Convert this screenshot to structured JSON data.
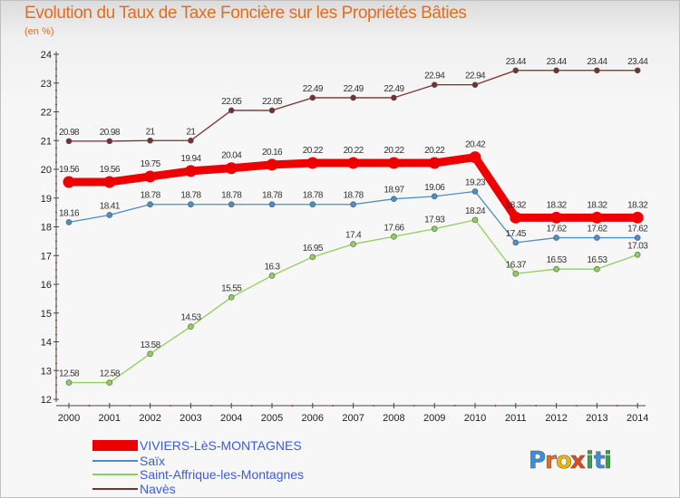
{
  "chart_data": {
    "type": "line",
    "title": "Evolution du Taux de Taxe Foncière sur les Propriétés Bâties",
    "unit_label": "(en %)",
    "x": [
      "2000",
      "2001",
      "2002",
      "2003",
      "2004",
      "2005",
      "2006",
      "2007",
      "2008",
      "2009",
      "2010",
      "2011",
      "2012",
      "2013",
      "2014"
    ],
    "ylim": [
      12,
      24
    ],
    "yticks": [
      "12",
      "13",
      "14",
      "15",
      "16",
      "17",
      "18",
      "19",
      "20",
      "21",
      "22",
      "23",
      "24"
    ],
    "grid": false,
    "legend_position": "bottom-left",
    "series": [
      {
        "name": "VIVIERS-LèS-MONTAGNES",
        "color": "#ee0000",
        "values": [
          19.56,
          19.56,
          19.75,
          19.94,
          20.04,
          20.16,
          20.22,
          20.22,
          20.22,
          20.22,
          20.42,
          18.32,
          18.32,
          18.32,
          18.32
        ],
        "labels": [
          "19.56",
          "19.56",
          "19.75",
          "19.94",
          "20.04",
          "20.16",
          "20.22",
          "20.22",
          "20.22",
          "20.22",
          "20.42",
          "18.32",
          "18.32",
          "18.32",
          "18.32"
        ]
      },
      {
        "name": "Saïx",
        "color": "#4d8ec4",
        "values": [
          18.16,
          18.41,
          18.78,
          18.78,
          18.78,
          18.78,
          18.78,
          18.78,
          18.97,
          19.06,
          19.23,
          17.45,
          17.62,
          17.62,
          17.62
        ],
        "labels": [
          "18.16",
          "18.41",
          "18.78",
          "18.78",
          "18.78",
          "18.78",
          "18.78",
          "18.78",
          "18.97",
          "19.06",
          "19.23",
          "17.45",
          "17.62",
          "17.62",
          "17.62"
        ]
      },
      {
        "name": "Saint-Affrique-les-Montagnes",
        "color": "#8fd05a",
        "values": [
          12.58,
          12.58,
          13.58,
          14.53,
          15.55,
          16.3,
          16.95,
          17.4,
          17.66,
          17.93,
          18.24,
          16.37,
          16.53,
          16.53,
          17.03
        ],
        "labels": [
          "12.58",
          "12.58",
          "13.58",
          "14.53",
          "15.55",
          "16.3",
          "16.95",
          "17.4",
          "17.66",
          "17.93",
          "18.24",
          "16.37",
          "16.53",
          "16.53",
          "17.03"
        ]
      },
      {
        "name": "Navès",
        "color": "#7a2e2e",
        "values": [
          20.98,
          20.98,
          21,
          21,
          22.05,
          22.05,
          22.49,
          22.49,
          22.49,
          22.94,
          22.94,
          23.44,
          23.44,
          23.44,
          23.44
        ],
        "labels": [
          "20.98",
          "20.98",
          "21",
          "21",
          "22.05",
          "22.05",
          "22.49",
          "22.49",
          "22.49",
          "22.94",
          "22.94",
          "23.44",
          "23.44",
          "23.44",
          "23.44"
        ]
      }
    ]
  },
  "brand": {
    "text": "Proxiti",
    "letters": [
      "P",
      "r",
      "o",
      "x",
      "i",
      "t",
      "i"
    ]
  }
}
